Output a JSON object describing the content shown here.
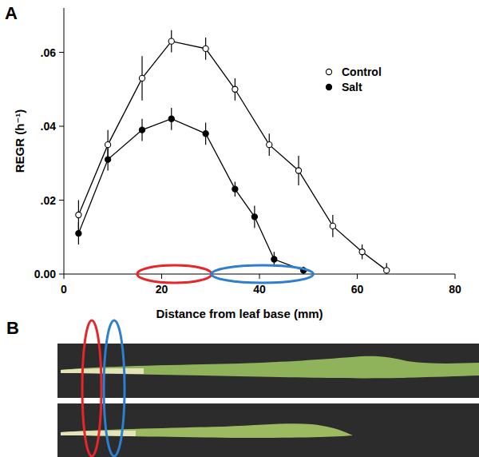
{
  "chart_data": {
    "type": "line",
    "x_label": "Distance from leaf base (mm)",
    "y_label": "REGR (h⁻¹)",
    "xlim": [
      0,
      80
    ],
    "xticks": [
      0,
      20,
      40,
      60,
      80
    ],
    "ylim": [
      0,
      0.072
    ],
    "yticks": [
      {
        "value": 0,
        "label": "0.00"
      },
      {
        "value": 0.02,
        "label": ".02"
      },
      {
        "value": 0.04,
        "label": ".04"
      },
      {
        "value": 0.06,
        "label": ".06"
      }
    ],
    "grid": false,
    "legend": "upper right",
    "series": [
      {
        "name": "Control",
        "color": "#000000",
        "marker": "circle-open",
        "line_style": "solid",
        "x": [
          3,
          9,
          16,
          22,
          29,
          35,
          42,
          48,
          55,
          61,
          66
        ],
        "values": [
          0.016,
          0.035,
          0.053,
          0.063,
          0.061,
          0.05,
          0.035,
          0.028,
          0.013,
          0.006,
          0.001
        ],
        "errors": [
          0.004,
          0.004,
          0.006,
          0.003,
          0.003,
          0.003,
          0.003,
          0.004,
          0.003,
          0.002,
          0.002
        ]
      },
      {
        "name": "Salt",
        "color": "#000000",
        "marker": "circle",
        "line_style": "solid",
        "x": [
          3,
          9,
          16,
          22,
          29,
          35,
          39,
          43,
          49
        ],
        "values": [
          0.011,
          0.031,
          0.039,
          0.042,
          0.038,
          0.023,
          0.0155,
          0.004,
          0.001
        ],
        "errors": [
          0.003,
          0.003,
          0.003,
          0.003,
          0.003,
          0.002,
          0.003,
          0.002,
          0.001
        ]
      }
    ],
    "highlight_regions": [
      {
        "color": "#e8262a",
        "xlim": [
          15,
          30.2
        ]
      },
      {
        "color": "#2e7fd0",
        "xlim": [
          30.2,
          51
        ]
      }
    ]
  },
  "panel_labels": [
    "A",
    "B"
  ]
}
